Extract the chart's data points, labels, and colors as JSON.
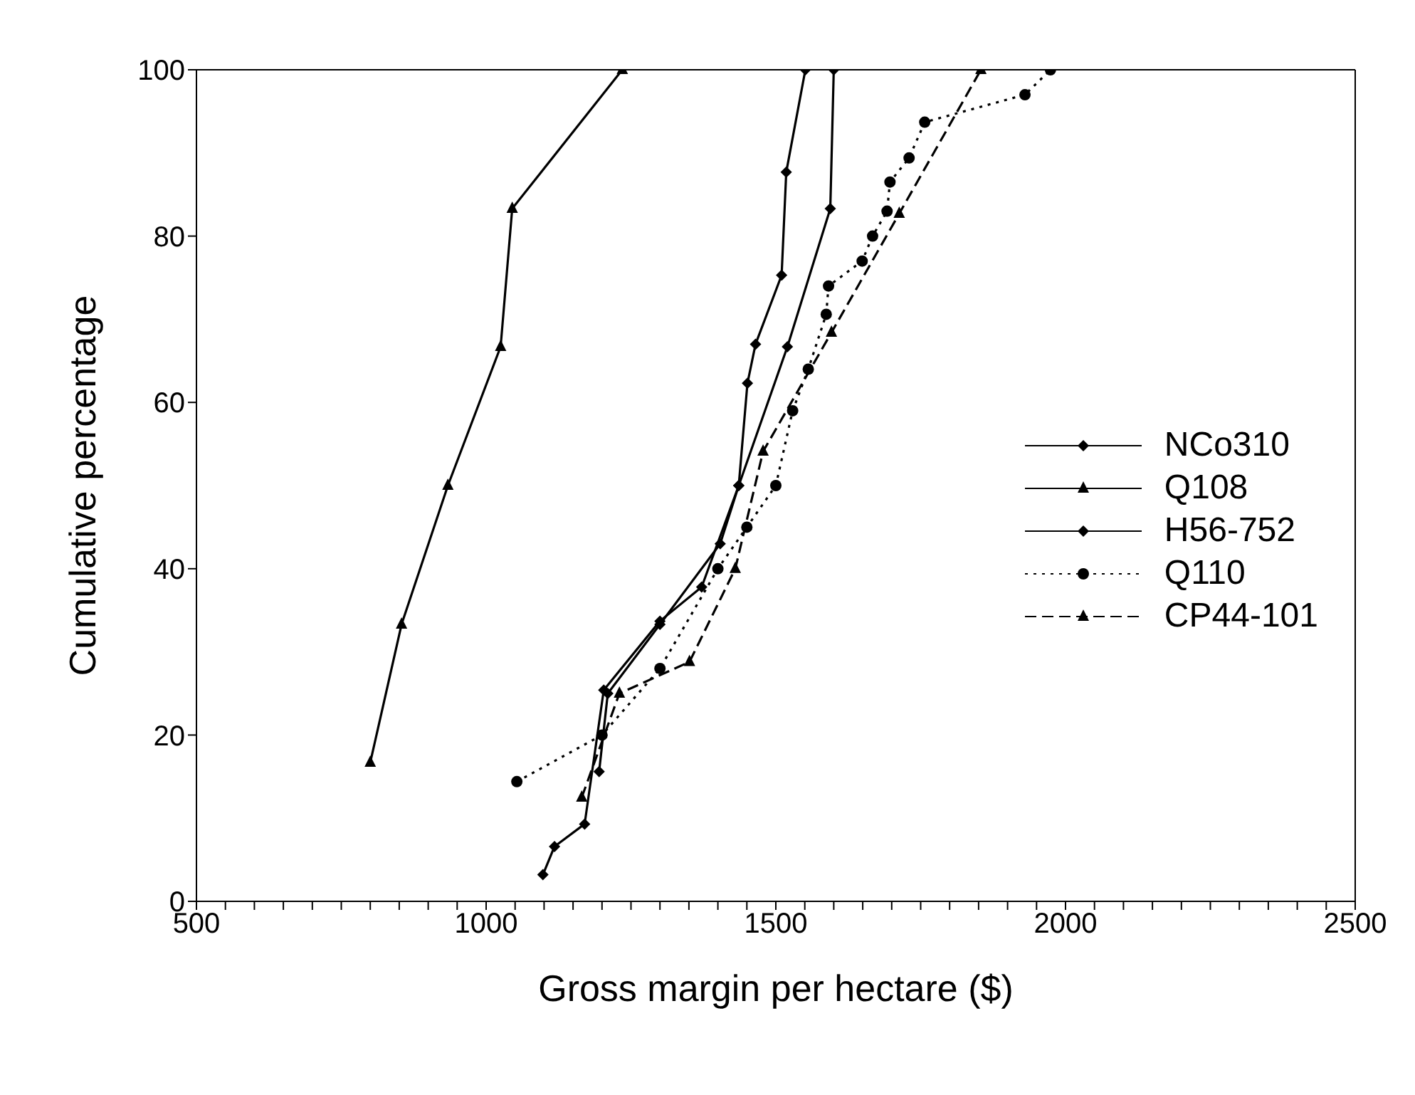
{
  "chart_data": {
    "type": "line",
    "xlabel": "Gross margin per hectare ($)",
    "ylabel": "Cumulative percentage",
    "xlim": [
      500,
      2500
    ],
    "xticks": [
      500,
      {
        "value": 550,
        "label": null
      },
      {
        "value": 600,
        "label": null
      },
      {
        "value": 650,
        "label": null
      },
      {
        "value": 700,
        "label": null
      },
      {
        "value": 750,
        "label": null
      },
      {
        "value": 800,
        "label": null
      },
      {
        "value": 850,
        "label": null
      },
      {
        "value": 900,
        "label": null
      },
      {
        "value": 950,
        "label": null
      },
      1000,
      {
        "value": 1050,
        "label": null
      },
      {
        "value": 1100,
        "label": null
      },
      {
        "value": 1150,
        "label": null
      },
      {
        "value": 1200,
        "label": null
      },
      {
        "value": 1250,
        "label": null
      },
      {
        "value": 1300,
        "label": null
      },
      {
        "value": 1350,
        "label": null
      },
      {
        "value": 1400,
        "label": null
      },
      {
        "value": 1450,
        "label": null
      },
      1500,
      {
        "value": 1550,
        "label": null
      },
      {
        "value": 1600,
        "label": null
      },
      {
        "value": 1650,
        "label": null
      },
      {
        "value": 1700,
        "label": null
      },
      {
        "value": 1750,
        "label": null
      },
      {
        "value": 1800,
        "label": null
      },
      {
        "value": 1850,
        "label": null
      },
      {
        "value": 1900,
        "label": null
      },
      {
        "value": 1950,
        "label": null
      },
      2000,
      {
        "value": 2050,
        "label": null
      },
      {
        "value": 2100,
        "label": null
      },
      {
        "value": 2150,
        "label": null
      },
      {
        "value": 2200,
        "label": null
      },
      {
        "value": 2250,
        "label": null
      },
      {
        "value": 2300,
        "label": null
      },
      {
        "value": 2350,
        "label": null
      },
      {
        "value": 2400,
        "label": null
      },
      {
        "value": 2450,
        "label": null
      },
      2500
    ],
    "ylim": [
      0,
      100
    ],
    "yticks": [
      0,
      20,
      40,
      60,
      80,
      100
    ],
    "grid": false,
    "legend": "right",
    "series": [
      {
        "name": "NCo310",
        "color": "#000000",
        "marker": "diamond",
        "line_style": "solid",
        "x": [
          1098,
          1118,
          1170,
          1203,
          1300,
          1372,
          1436,
          1451,
          1465,
          1510,
          1518,
          1551
        ],
        "values": [
          3.2,
          6.6,
          9.3,
          25.4,
          33.7,
          37.8,
          50,
          62.3,
          67,
          75.3,
          87.7,
          100
        ]
      },
      {
        "name": "Q108",
        "color": "#000000",
        "marker": "triangle",
        "line_style": "solid",
        "x": [
          800,
          854,
          934,
          1025,
          1045,
          1235
        ],
        "values": [
          16.7,
          33.3,
          50,
          66.7,
          83.3,
          100
        ]
      },
      {
        "name": "H56-752",
        "color": "#000000",
        "marker": "diamond",
        "line_style": "solid",
        "x": [
          1195,
          1210,
          1300,
          1404,
          1436,
          1520,
          1594,
          1600
        ],
        "values": [
          15.6,
          25,
          33.3,
          43,
          50,
          66.7,
          83.3,
          100
        ]
      },
      {
        "name": "Q110",
        "color": "#000000",
        "marker": "circle",
        "line_style": "dotted",
        "x": [
          1053,
          1200,
          1300,
          1400,
          1450,
          1500,
          1529,
          1556,
          1587,
          1591,
          1649,
          1667,
          1692,
          1697,
          1730,
          1757,
          1930,
          1974
        ],
        "values": [
          14.4,
          20,
          28,
          40,
          45,
          50,
          59,
          64,
          70.6,
          74,
          77,
          80,
          83,
          86.5,
          89.4,
          93.7,
          97,
          100
        ]
      },
      {
        "name": "CP44-101",
        "color": "#000000",
        "marker": "triangle",
        "line_style": "dashed",
        "x": [
          1165,
          1230,
          1351,
          1430,
          1478,
          1596,
          1713,
          1854
        ],
        "values": [
          12.5,
          25,
          28.8,
          40,
          54.1,
          68.4,
          82.7,
          100
        ]
      }
    ]
  }
}
